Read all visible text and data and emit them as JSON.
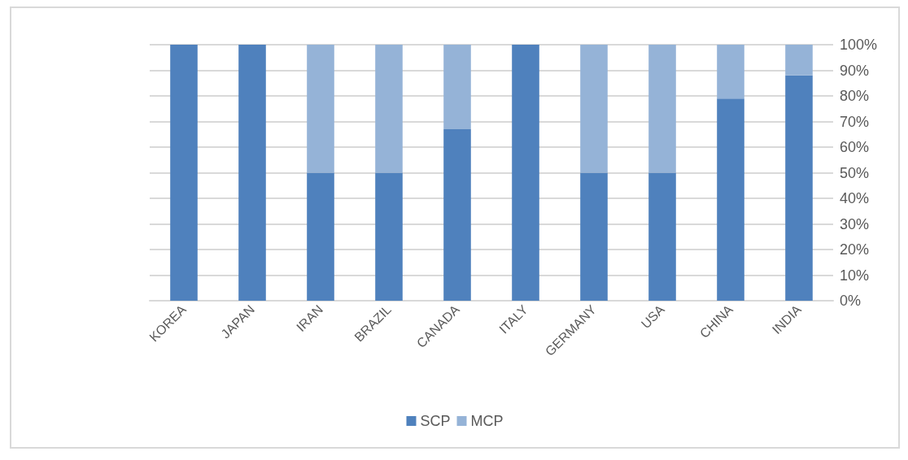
{
  "chart_data": {
    "type": "bar",
    "stacked": true,
    "categories": [
      "KOREA",
      "JAPAN",
      "IRAN",
      "BRAZIL",
      "CANADA",
      "ITALY",
      "GERMANY",
      "USA",
      "CHINA",
      "INDIA"
    ],
    "series": [
      {
        "name": "SCP",
        "color": "#4f81bd",
        "values": [
          100,
          100,
          50,
          50,
          67,
          100,
          50,
          50,
          79,
          88
        ]
      },
      {
        "name": "MCP",
        "color": "#95b3d7",
        "values": [
          0,
          0,
          50,
          50,
          33,
          0,
          50,
          50,
          21,
          12
        ]
      }
    ],
    "ylim": [
      0,
      100
    ],
    "yticks": [
      {
        "value": 0,
        "label": "0%"
      },
      {
        "value": 10,
        "label": "10%"
      },
      {
        "value": 20,
        "label": "20%"
      },
      {
        "value": 30,
        "label": "30%"
      },
      {
        "value": 40,
        "label": "40%"
      },
      {
        "value": 50,
        "label": "50%"
      },
      {
        "value": 60,
        "label": "60%"
      },
      {
        "value": 70,
        "label": "70%"
      },
      {
        "value": 80,
        "label": "80%"
      },
      {
        "value": 90,
        "label": "90%"
      },
      {
        "value": 100,
        "label": "100%"
      }
    ],
    "grid": "y",
    "legend": "bottom"
  }
}
